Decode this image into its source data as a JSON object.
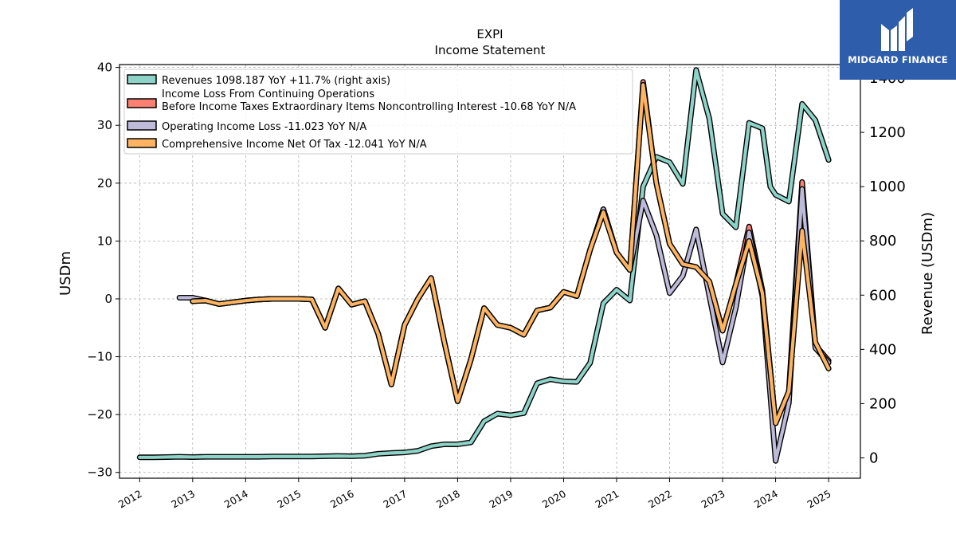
{
  "title": "EXPI",
  "subtitle": "Income Statement",
  "brand": {
    "name": "MIDGARD FINANCE",
    "color": "#2d5dab"
  },
  "chart_data": {
    "type": "line",
    "x_tick_labels": [
      "2012",
      "2013",
      "2014",
      "2015",
      "2016",
      "2017",
      "2018",
      "2019",
      "2020",
      "2021",
      "2022",
      "2023",
      "2024",
      "2025"
    ],
    "ylabel_left": "USDm",
    "ylabel_right": "Revenue (USDm)",
    "ylim_left": [
      -31,
      40.5
    ],
    "yticks_left": [
      -30,
      -20,
      -10,
      0,
      10,
      20,
      30,
      40
    ],
    "ylim_right": [
      -75,
      1450
    ],
    "yticks_right": [
      0,
      200,
      400,
      600,
      800,
      1000,
      1200,
      1400
    ],
    "grid": true,
    "legend_position": "top-left",
    "series": [
      {
        "name": "Revenues  1098.187 YoY +11.7% (right axis)",
        "axis": "right",
        "color": "#8dd3c7",
        "points": [
          [
            2012.0,
            2
          ],
          [
            2012.25,
            2
          ],
          [
            2012.5,
            3
          ],
          [
            2012.75,
            4
          ],
          [
            2013.0,
            3
          ],
          [
            2013.25,
            4
          ],
          [
            2013.5,
            4
          ],
          [
            2013.75,
            4
          ],
          [
            2014.0,
            4
          ],
          [
            2014.25,
            4
          ],
          [
            2014.5,
            5
          ],
          [
            2014.75,
            5
          ],
          [
            2015.0,
            5
          ],
          [
            2015.25,
            5
          ],
          [
            2015.5,
            6
          ],
          [
            2015.75,
            7
          ],
          [
            2016.0,
            6
          ],
          [
            2016.25,
            8
          ],
          [
            2016.5,
            15
          ],
          [
            2016.75,
            18
          ],
          [
            2017.0,
            20
          ],
          [
            2017.25,
            26
          ],
          [
            2017.5,
            43
          ],
          [
            2017.75,
            50
          ],
          [
            2018.0,
            50
          ],
          [
            2018.25,
            57
          ],
          [
            2018.5,
            135
          ],
          [
            2018.75,
            163
          ],
          [
            2019.0,
            157
          ],
          [
            2019.25,
            165
          ],
          [
            2019.5,
            275
          ],
          [
            2019.75,
            290
          ],
          [
            2020.0,
            282
          ],
          [
            2020.25,
            280
          ],
          [
            2020.5,
            350
          ],
          [
            2020.75,
            570
          ],
          [
            2021.0,
            620
          ],
          [
            2021.25,
            580
          ],
          [
            2021.5,
            1000
          ],
          [
            2021.75,
            1110
          ],
          [
            2022.0,
            1090
          ],
          [
            2022.25,
            1010
          ],
          [
            2022.5,
            1430
          ],
          [
            2022.75,
            1250
          ],
          [
            2023.0,
            900
          ],
          [
            2023.25,
            850
          ],
          [
            2023.5,
            1235
          ],
          [
            2023.75,
            1215
          ],
          [
            2023.9,
            1000
          ],
          [
            2024.0,
            970
          ],
          [
            2024.25,
            945
          ],
          [
            2024.5,
            1305
          ],
          [
            2024.75,
            1245
          ],
          [
            2025.0,
            1098.187
          ]
        ]
      },
      {
        "name": "Income Loss From Continuing Operations\nBefore Income Taxes Extraordinary Items Noncontrolling Interest  -10.68 YoY N/A",
        "axis": "left",
        "color": "#fb8072",
        "points": [
          [
            2013.0,
            -0.4
          ],
          [
            2013.25,
            -0.3
          ],
          [
            2013.5,
            -0.9
          ],
          [
            2013.75,
            -0.6
          ],
          [
            2014.0,
            -0.3
          ],
          [
            2014.25,
            -0.1
          ],
          [
            2014.5,
            0.0
          ],
          [
            2014.75,
            0.0
          ],
          [
            2015.0,
            0.0
          ],
          [
            2015.25,
            -0.1
          ],
          [
            2015.5,
            -5.0
          ],
          [
            2015.75,
            1.8
          ],
          [
            2016.0,
            -1.0
          ],
          [
            2016.25,
            -0.4
          ],
          [
            2016.5,
            -6.0
          ],
          [
            2016.75,
            -14.8
          ],
          [
            2017.0,
            -4.5
          ],
          [
            2017.25,
            0.0
          ],
          [
            2017.5,
            3.6
          ],
          [
            2017.75,
            -7.5
          ],
          [
            2018.0,
            -17.7
          ],
          [
            2018.25,
            -10.5
          ],
          [
            2018.5,
            -1.6
          ],
          [
            2018.75,
            -4.5
          ],
          [
            2019.0,
            -5.0
          ],
          [
            2019.25,
            -6.2
          ],
          [
            2019.5,
            -2.0
          ],
          [
            2019.75,
            -1.5
          ],
          [
            2020.0,
            1.2
          ],
          [
            2020.25,
            0.5
          ],
          [
            2020.5,
            8.5
          ],
          [
            2020.75,
            15.5
          ],
          [
            2021.0,
            8.0
          ],
          [
            2021.25,
            5.0
          ],
          [
            2021.5,
            37.5
          ],
          [
            2021.75,
            20.0
          ],
          [
            2022.0,
            9.5
          ],
          [
            2022.25,
            6.0
          ],
          [
            2022.5,
            5.5
          ],
          [
            2022.75,
            3.0
          ],
          [
            2023.0,
            -5.5
          ],
          [
            2023.25,
            2.5
          ],
          [
            2023.5,
            12.5
          ],
          [
            2023.75,
            1.5
          ],
          [
            2024.0,
            -21.5
          ],
          [
            2024.25,
            -16.0
          ],
          [
            2024.5,
            20.2
          ],
          [
            2024.75,
            -8.0
          ],
          [
            2025.0,
            -10.68
          ]
        ]
      },
      {
        "name": "Operating Income Loss  -11.023 YoY N/A",
        "axis": "left",
        "color": "#bebada",
        "points": [
          [
            2012.75,
            0.2
          ],
          [
            2013.0,
            0.2
          ],
          [
            2013.25,
            -0.3
          ],
          [
            2013.5,
            -0.9
          ],
          [
            2013.75,
            -0.6
          ],
          [
            2014.0,
            -0.3
          ],
          [
            2014.25,
            -0.1
          ],
          [
            2014.5,
            0.0
          ],
          [
            2014.75,
            0.0
          ],
          [
            2015.0,
            0.0
          ],
          [
            2015.25,
            -0.1
          ],
          [
            2015.5,
            -5.0
          ],
          [
            2015.75,
            1.8
          ],
          [
            2016.0,
            -1.0
          ],
          [
            2016.25,
            -0.4
          ],
          [
            2016.5,
            -6.0
          ],
          [
            2016.75,
            -14.8
          ],
          [
            2017.0,
            -4.5
          ],
          [
            2017.25,
            0.0
          ],
          [
            2017.5,
            3.6
          ],
          [
            2017.75,
            -7.5
          ],
          [
            2018.0,
            -17.7
          ],
          [
            2018.25,
            -10.5
          ],
          [
            2018.5,
            -1.6
          ],
          [
            2018.75,
            -4.5
          ],
          [
            2019.0,
            -5.0
          ],
          [
            2019.25,
            -6.2
          ],
          [
            2019.5,
            -2.0
          ],
          [
            2019.75,
            -1.5
          ],
          [
            2020.0,
            1.2
          ],
          [
            2020.25,
            0.5
          ],
          [
            2020.5,
            8.5
          ],
          [
            2020.75,
            15.5
          ],
          [
            2021.0,
            8.0
          ],
          [
            2021.25,
            5.0
          ],
          [
            2021.5,
            17.0
          ],
          [
            2021.75,
            11.0
          ],
          [
            2022.0,
            1.0
          ],
          [
            2022.25,
            4.0
          ],
          [
            2022.5,
            12.0
          ],
          [
            2022.75,
            0.5
          ],
          [
            2023.0,
            -11.0
          ],
          [
            2023.25,
            -1.5
          ],
          [
            2023.5,
            11.5
          ],
          [
            2023.75,
            0.5
          ],
          [
            2024.0,
            -28.0
          ],
          [
            2024.25,
            -18.0
          ],
          [
            2024.5,
            19.0
          ],
          [
            2024.75,
            -8.5
          ],
          [
            2025.0,
            -11.023
          ]
        ]
      },
      {
        "name": "Comprehensive Income Net Of Tax  -12.041 YoY N/A",
        "axis": "left",
        "color": "#fdb462",
        "points": [
          [
            2013.0,
            -0.4
          ],
          [
            2013.25,
            -0.3
          ],
          [
            2013.5,
            -0.9
          ],
          [
            2013.75,
            -0.6
          ],
          [
            2014.0,
            -0.3
          ],
          [
            2014.25,
            -0.1
          ],
          [
            2014.5,
            0.0
          ],
          [
            2014.75,
            0.0
          ],
          [
            2015.0,
            0.0
          ],
          [
            2015.25,
            -0.1
          ],
          [
            2015.5,
            -5.0
          ],
          [
            2015.75,
            1.8
          ],
          [
            2016.0,
            -1.0
          ],
          [
            2016.25,
            -0.4
          ],
          [
            2016.5,
            -6.0
          ],
          [
            2016.75,
            -14.8
          ],
          [
            2017.0,
            -4.5
          ],
          [
            2017.25,
            0.0
          ],
          [
            2017.5,
            3.6
          ],
          [
            2017.75,
            -7.5
          ],
          [
            2018.0,
            -17.7
          ],
          [
            2018.25,
            -10.5
          ],
          [
            2018.5,
            -1.6
          ],
          [
            2018.75,
            -4.5
          ],
          [
            2019.0,
            -5.0
          ],
          [
            2019.25,
            -6.2
          ],
          [
            2019.5,
            -2.0
          ],
          [
            2019.75,
            -1.5
          ],
          [
            2020.0,
            1.2
          ],
          [
            2020.25,
            0.5
          ],
          [
            2020.5,
            8.5
          ],
          [
            2020.75,
            15.0
          ],
          [
            2021.0,
            8.0
          ],
          [
            2021.25,
            5.0
          ],
          [
            2021.5,
            37.0
          ],
          [
            2021.75,
            20.0
          ],
          [
            2022.0,
            9.5
          ],
          [
            2022.25,
            6.0
          ],
          [
            2022.5,
            5.5
          ],
          [
            2022.75,
            3.0
          ],
          [
            2023.0,
            -5.5
          ],
          [
            2023.25,
            2.5
          ],
          [
            2023.5,
            10.0
          ],
          [
            2023.75,
            1.0
          ],
          [
            2024.0,
            -21.5
          ],
          [
            2024.25,
            -16.0
          ],
          [
            2024.5,
            11.8
          ],
          [
            2024.75,
            -7.5
          ],
          [
            2025.0,
            -12.041
          ]
        ]
      }
    ]
  }
}
